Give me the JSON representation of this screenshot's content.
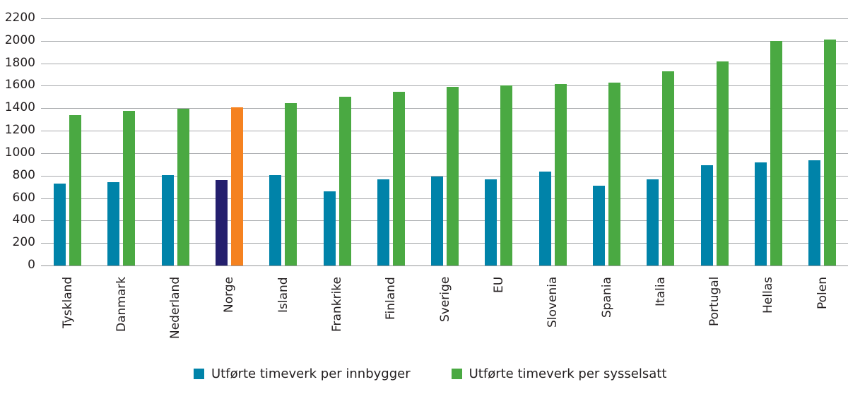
{
  "chart_data": {
    "type": "bar",
    "title": "",
    "xlabel": "",
    "ylabel": "",
    "ylim": [
      0,
      2200
    ],
    "yticks": [
      0,
      200,
      400,
      600,
      800,
      1000,
      1200,
      1400,
      1600,
      1800,
      2000,
      2200
    ],
    "grid": true,
    "legend_position": "bottom",
    "categories": [
      "Tyskland",
      "Danmark",
      "Nederland",
      "Norge",
      "Island",
      "Frankrike",
      "Finland",
      "Sverige",
      "EU",
      "Slovenia",
      "Spania",
      "Italia",
      "Portugal",
      "Hellas",
      "Polen"
    ],
    "series": [
      {
        "name": "Utførte timeverk per innbygger",
        "color": "#0083a9",
        "values": [
          730,
          742,
          805,
          761,
          805,
          660,
          768,
          793,
          768,
          835,
          710,
          768,
          893,
          918,
          937
        ]
      },
      {
        "name": "Utførte timeverk per sysselsatt",
        "color": "#4aa942",
        "values": [
          1340,
          1378,
          1396,
          1410,
          1446,
          1500,
          1548,
          1588,
          1606,
          1614,
          1630,
          1730,
          1815,
          2000,
          2014
        ]
      }
    ],
    "highlight": {
      "category": "Norge",
      "colors": [
        "#241f6e",
        "#f58220"
      ]
    }
  },
  "legend": {
    "items": [
      {
        "label": "Utførte timeverk per innbygger",
        "color": "#0083a9"
      },
      {
        "label": "Utførte timeverk per sysselsatt",
        "color": "#4aa942"
      }
    ]
  }
}
